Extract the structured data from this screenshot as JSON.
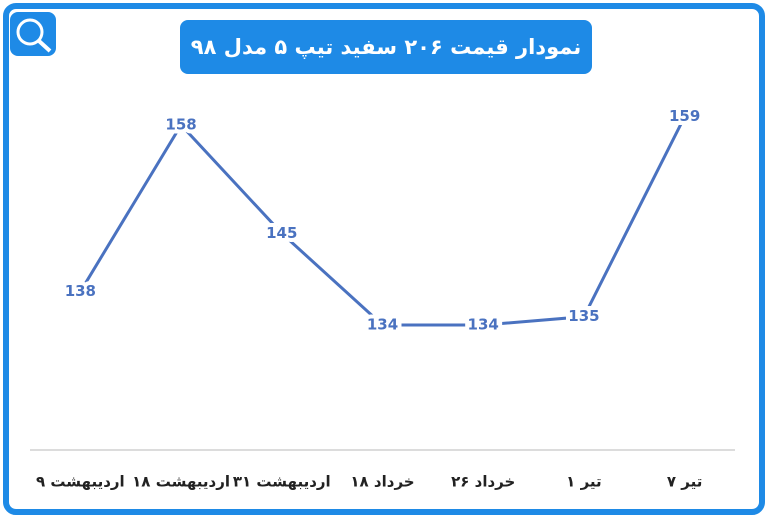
{
  "chart_data": {
    "type": "line",
    "title": "نمودار قیمت ۲۰۶ سفید تیپ ۵ مدل ۹۸",
    "categories": [
      "۹ اردیبهشت",
      "۱۸ اردیبهشت",
      "۳۱ اردیبهشت",
      "۱۸ خرداد",
      "۲۶ خرداد",
      "۱ تیر",
      "۷ تیر"
    ],
    "values": [
      138,
      158,
      145,
      134,
      134,
      135,
      159
    ],
    "color": "#4a72c0",
    "ylim": [
      119,
      161
    ]
  }
}
